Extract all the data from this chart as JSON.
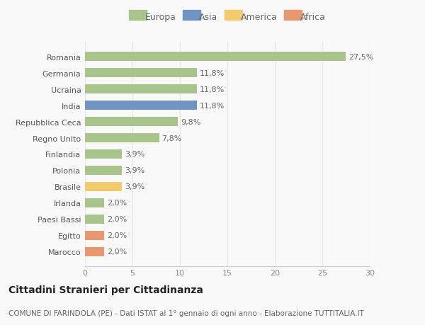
{
  "categories": [
    "Marocco",
    "Egitto",
    "Paesi Bassi",
    "Irlanda",
    "Brasile",
    "Polonia",
    "Finlandia",
    "Regno Unito",
    "Repubblica Ceca",
    "India",
    "Ucraina",
    "Germania",
    "Romania"
  ],
  "values": [
    2.0,
    2.0,
    2.0,
    2.0,
    3.9,
    3.9,
    3.9,
    7.8,
    9.8,
    11.8,
    11.8,
    11.8,
    27.5
  ],
  "labels": [
    "2,0%",
    "2,0%",
    "2,0%",
    "2,0%",
    "3,9%",
    "3,9%",
    "3,9%",
    "7,8%",
    "9,8%",
    "11,8%",
    "11,8%",
    "11,8%",
    "27,5%"
  ],
  "colors": [
    "#E89870",
    "#E89870",
    "#A8C48A",
    "#A8C48A",
    "#F2CB6E",
    "#A8C48A",
    "#A8C48A",
    "#A8C48A",
    "#A8C48A",
    "#7094C4",
    "#A8C48A",
    "#A8C48A",
    "#A8C48A"
  ],
  "legend_labels": [
    "Europa",
    "Asia",
    "America",
    "Africa"
  ],
  "legend_colors": [
    "#A8C48A",
    "#7094C4",
    "#F2CB6E",
    "#E89870"
  ],
  "title": "Cittadini Stranieri per Cittadinanza",
  "subtitle": "COMUNE DI FARINDOLA (PE) - Dati ISTAT al 1° gennaio di ogni anno - Elaborazione TUTTITALIA.IT",
  "xlim": [
    0,
    30
  ],
  "xticks": [
    0,
    5,
    10,
    15,
    20,
    25,
    30
  ],
  "background_color": "#f9f9f9",
  "grid_color": "#e8e8e8",
  "bar_height": 0.55,
  "label_fontsize": 8,
  "tick_fontsize": 8,
  "legend_fontsize": 9,
  "title_fontsize": 10,
  "subtitle_fontsize": 7.5
}
